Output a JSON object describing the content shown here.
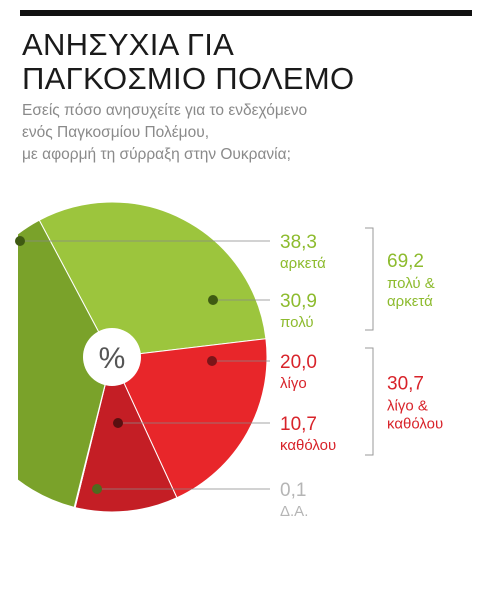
{
  "title_lines": [
    "ΑΝΗΣΥΧΙΑ ΓΙΑ",
    "ΠΑΓΚΟΣΜΙΟ ΠΟΛΕΜΟ"
  ],
  "subtitle_lines": [
    "Εσείς πόσο ανησυχείτε για το ενδεχόμενο",
    "ενός Παγκοσμίου Πολέμου,",
    "με αφορμή τη σύρραξη στην Ουκρανία;"
  ],
  "center_symbol": "%",
  "colors": {
    "light_green": "#9cc53d",
    "dark_green": "#7aa22a",
    "red": "#e8262a",
    "dark_red": "#c41e25",
    "grey": "#c8c8c8",
    "label_green": "#8dbb2e",
    "label_red": "#d8232a",
    "label_grey": "#b5b5b5"
  },
  "chart_data": {
    "type": "pie",
    "unit": "%",
    "slices": [
      {
        "label": "αρκετά",
        "value": 38.3,
        "display": "38,3"
      },
      {
        "label": "πολύ",
        "value": 30.9,
        "display": "30,9"
      },
      {
        "label": "λίγο",
        "value": 20.0,
        "display": "20,0"
      },
      {
        "label": "καθόλου",
        "value": 10.7,
        "display": "10,7"
      },
      {
        "label": "Δ.Α.",
        "value": 0.1,
        "display": "0,1"
      }
    ],
    "groups": [
      {
        "value": 69.2,
        "display": "69,2",
        "label_lines": [
          "πολύ &",
          "αρκετά"
        ]
      },
      {
        "value": 30.7,
        "display": "30,7",
        "label_lines": [
          "λίγο &",
          "καθόλου"
        ]
      }
    ]
  }
}
